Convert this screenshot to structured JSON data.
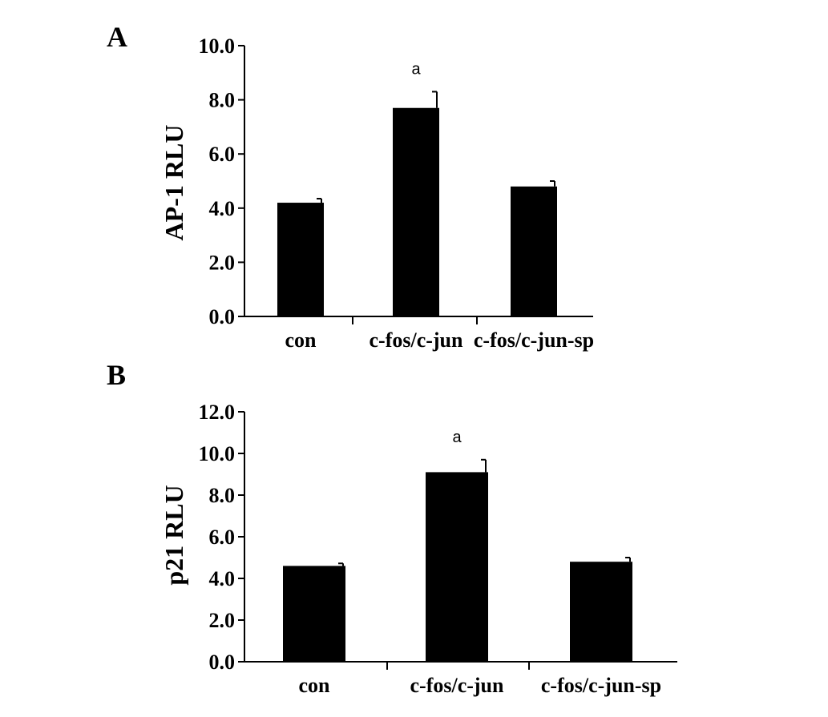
{
  "chart_data": [
    {
      "panel": "A",
      "type": "bar",
      "categories": [
        "con",
        "c-fos/c-jun",
        "c-fos/c-jun-sp"
      ],
      "values": [
        4.2,
        7.7,
        4.8
      ],
      "errors": [
        0.15,
        0.6,
        0.2
      ],
      "annotations": [
        "",
        "a",
        ""
      ],
      "ylabel": "AP-1 RLU",
      "ylim": [
        0,
        10
      ],
      "yticks": [
        "0.0",
        "2.0",
        "4.0",
        "6.0",
        "8.0",
        "10.0"
      ],
      "grid": false
    },
    {
      "panel": "B",
      "type": "bar",
      "categories": [
        "con",
        "c-fos/c-jun",
        "c-fos/c-jun-sp"
      ],
      "values": [
        4.6,
        9.1,
        4.8
      ],
      "errors": [
        0.12,
        0.6,
        0.2
      ],
      "annotations": [
        "",
        "a",
        ""
      ],
      "ylabel": "p21 RLU",
      "ylim": [
        0,
        12
      ],
      "yticks": [
        "0.0",
        "2.0",
        "4.0",
        "6.0",
        "8.0",
        "10.0",
        "12.0"
      ],
      "grid": false
    }
  ]
}
